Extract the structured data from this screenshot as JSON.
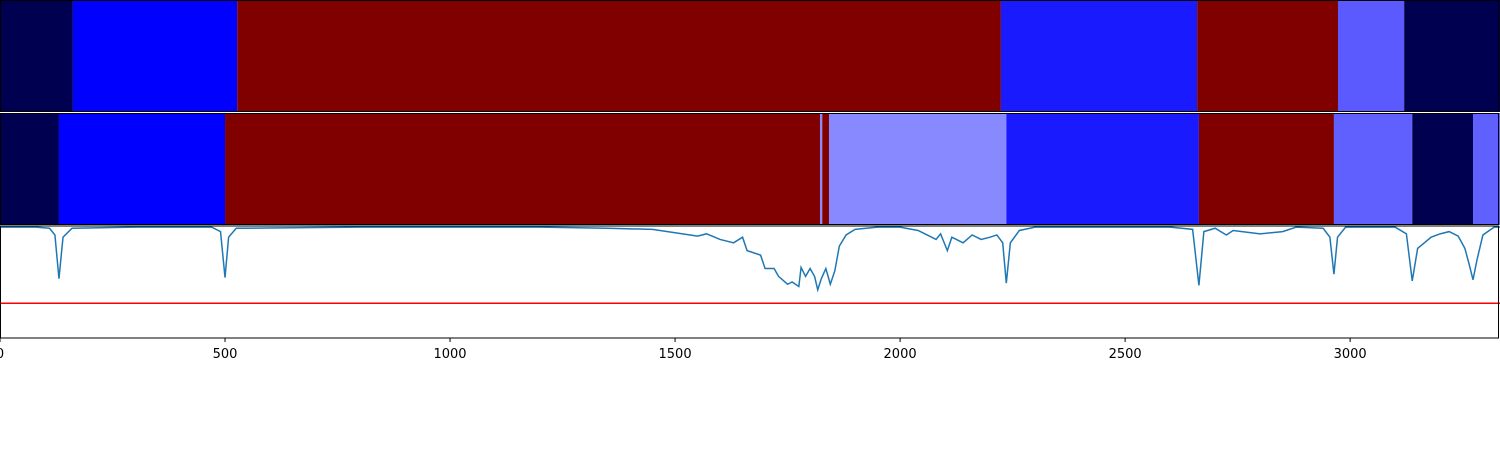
{
  "chart_data": {
    "type": "segmentation",
    "xlim": [
      0,
      3333
    ],
    "xticks": [
      0,
      500,
      1000,
      1500,
      2000,
      2500,
      3000
    ],
    "ylim": [
      0,
      1
    ],
    "rows": [
      {
        "segments": [
          {
            "start": 0,
            "end": 162,
            "color": "#000050"
          },
          {
            "start": 162,
            "end": 527,
            "color": "#0000ff"
          },
          {
            "start": 527,
            "end": 2224,
            "color": "#800000"
          },
          {
            "start": 2224,
            "end": 2660,
            "color": "#1a1aff"
          },
          {
            "start": 2660,
            "end": 2973,
            "color": "#800000"
          },
          {
            "start": 2973,
            "end": 3120,
            "color": "#5a5aff"
          },
          {
            "start": 3120,
            "end": 3333,
            "color": "#000050"
          }
        ]
      },
      {
        "segments": [
          {
            "start": 0,
            "end": 131,
            "color": "#000050"
          },
          {
            "start": 131,
            "end": 500,
            "color": "#0000ff"
          },
          {
            "start": 500,
            "end": 1822,
            "color": "#800000"
          },
          {
            "start": 1822,
            "end": 1827,
            "color": "#8888ff"
          },
          {
            "start": 1827,
            "end": 1842,
            "color": "#800000"
          },
          {
            "start": 1842,
            "end": 2236,
            "color": "#8888ff"
          },
          {
            "start": 2236,
            "end": 2664,
            "color": "#1a1aff"
          },
          {
            "start": 2664,
            "end": 2964,
            "color": "#800000"
          },
          {
            "start": 2964,
            "end": 3138,
            "color": "#6060ff"
          },
          {
            "start": 3138,
            "end": 3273,
            "color": "#000050"
          },
          {
            "start": 3273,
            "end": 3333,
            "color": "#6060ff"
          }
        ]
      }
    ],
    "line": {
      "color": "#1f77b4",
      "x": [
        0,
        80,
        110,
        122,
        131,
        140,
        160,
        300,
        470,
        490,
        500,
        508,
        525,
        800,
        1200,
        1350,
        1450,
        1500,
        1550,
        1570,
        1600,
        1630,
        1650,
        1660,
        1690,
        1700,
        1720,
        1730,
        1750,
        1760,
        1775,
        1780,
        1790,
        1800,
        1810,
        1817,
        1825,
        1835,
        1845,
        1855,
        1865,
        1880,
        1900,
        1950,
        2000,
        2040,
        2060,
        2080,
        2090,
        2105,
        2115,
        2140,
        2160,
        2180,
        2200,
        2215,
        2228,
        2236,
        2245,
        2265,
        2300,
        2600,
        2650,
        2664,
        2675,
        2700,
        2725,
        2740,
        2800,
        2850,
        2880,
        2940,
        2955,
        2964,
        2972,
        2990,
        3100,
        3125,
        3138,
        3150,
        3180,
        3200,
        3220,
        3240,
        3255,
        3265,
        3273,
        3282,
        3295,
        3320,
        3333
      ],
      "values": [
        0.99,
        0.99,
        0.98,
        0.92,
        0.53,
        0.9,
        0.98,
        0.99,
        0.99,
        0.95,
        0.54,
        0.9,
        0.98,
        0.99,
        0.99,
        0.98,
        0.97,
        0.94,
        0.91,
        0.93,
        0.88,
        0.85,
        0.9,
        0.78,
        0.74,
        0.62,
        0.62,
        0.55,
        0.48,
        0.5,
        0.46,
        0.63,
        0.55,
        0.62,
        0.55,
        0.43,
        0.53,
        0.62,
        0.48,
        0.6,
        0.82,
        0.92,
        0.97,
        0.99,
        0.99,
        0.96,
        0.92,
        0.88,
        0.93,
        0.78,
        0.9,
        0.85,
        0.92,
        0.88,
        0.9,
        0.92,
        0.85,
        0.49,
        0.85,
        0.96,
        0.99,
        0.99,
        0.97,
        0.47,
        0.95,
        0.98,
        0.92,
        0.96,
        0.93,
        0.95,
        0.99,
        0.98,
        0.9,
        0.57,
        0.9,
        0.99,
        0.99,
        0.93,
        0.51,
        0.8,
        0.9,
        0.93,
        0.95,
        0.91,
        0.8,
        0.65,
        0.52,
        0.7,
        0.92,
        0.99,
        0.99
      ]
    },
    "threshold": {
      "value": 0.31,
      "color": "#ff0000"
    }
  }
}
